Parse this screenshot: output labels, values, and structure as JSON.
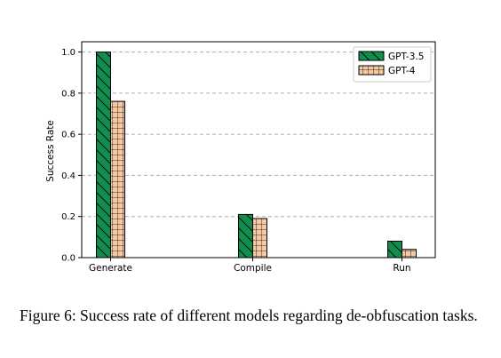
{
  "chart_data": {
    "type": "bar",
    "categories": [
      "Generate",
      "Compile",
      "Run"
    ],
    "series": [
      {
        "name": "GPT-3.5",
        "values": [
          1.0,
          0.21,
          0.08
        ],
        "color": "#138d4e",
        "hatch": "diagonal"
      },
      {
        "name": "GPT-4",
        "values": [
          0.76,
          0.19,
          0.04
        ],
        "color": "#f4c8a0",
        "hatch": "grid"
      }
    ],
    "xlabel": "",
    "ylabel": "Success Rate",
    "ylim": [
      0,
      1.05
    ],
    "yticks": [
      "0.0",
      "0.2",
      "0.4",
      "0.6",
      "0.8",
      "1.0"
    ],
    "grid": "y-dashed",
    "legend_position": "top-right"
  },
  "caption": "Figure 6: Success rate of different models regarding de-obfuscation tasks."
}
